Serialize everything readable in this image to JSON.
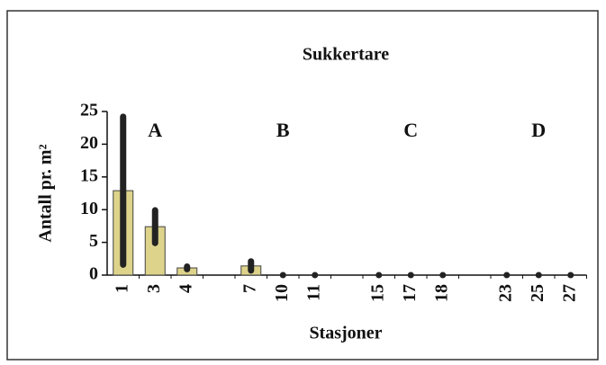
{
  "chart_data": {
    "type": "bar",
    "title": "Sukkertare",
    "xlabel": "Stasjoner",
    "ylabel": "Antall pr. m²",
    "categories": [
      "1",
      "3",
      "4",
      null,
      "7",
      "10",
      "11",
      null,
      "15",
      "17",
      "18",
      null,
      "23",
      "25",
      "27"
    ],
    "values": [
      12.9,
      7.4,
      1.1,
      null,
      1.4,
      0,
      0,
      null,
      0,
      0,
      0,
      null,
      0,
      0,
      0
    ],
    "errors": [
      11.3,
      2.5,
      0.2,
      null,
      0.7,
      0,
      0,
      null,
      0,
      0,
      0,
      null,
      0,
      0,
      0
    ],
    "annotations": [
      "A",
      "B",
      "C",
      "D"
    ],
    "color": "#ddd38a",
    "ylim": [
      0,
      25
    ],
    "yticks": [
      0,
      5,
      10,
      15,
      20,
      25
    ]
  }
}
